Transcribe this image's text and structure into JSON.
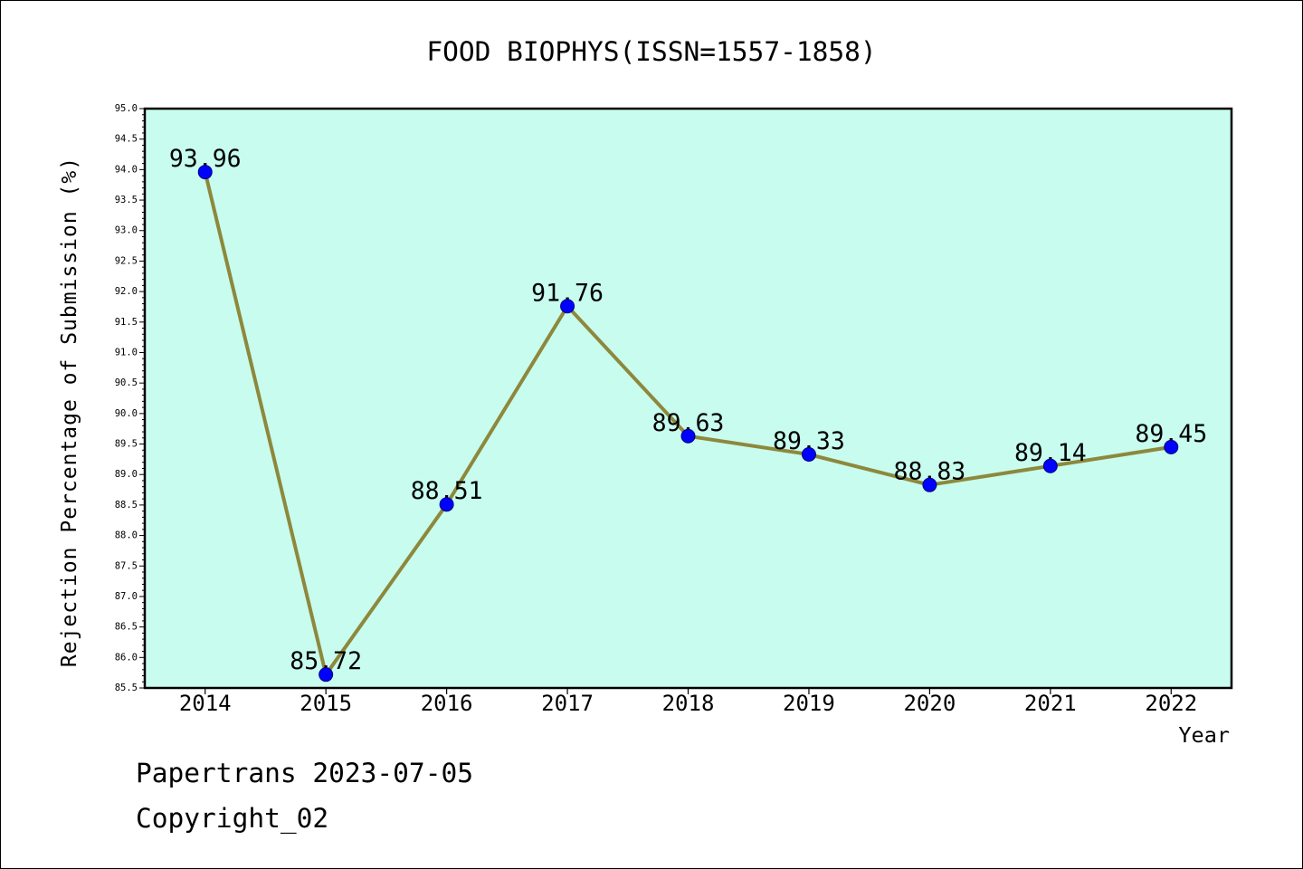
{
  "chart_data": {
    "type": "line",
    "title": "FOOD BIOPHYS(ISSN=1557-1858)",
    "xlabel": "Year",
    "ylabel": "Rejection Percentage of Submission (%)",
    "categories": [
      "2014",
      "2015",
      "2016",
      "2017",
      "2018",
      "2019",
      "2020",
      "2021",
      "2022"
    ],
    "series": [
      {
        "values": [
          93.96,
          85.72,
          88.51,
          91.76,
          89.63,
          89.33,
          88.83,
          89.14,
          89.45
        ]
      }
    ],
    "data_labels": [
      "93.96",
      "85.72",
      "88.51",
      "91.76",
      "89.63",
      "89.33",
      "88.83",
      "89.14",
      "89.45"
    ],
    "ylim": [
      85.5,
      95.0
    ],
    "yticks": [
      "85.5",
      "86.0",
      "86.5",
      "87.0",
      "87.5",
      "88.0",
      "88.5",
      "89.0",
      "89.5",
      "90.0",
      "90.5",
      "91.0",
      "91.5",
      "92.0",
      "92.5",
      "93.0",
      "93.5",
      "94.0",
      "94.5",
      "95.0"
    ],
    "grid": false,
    "legend": "none"
  },
  "footer": {
    "stamp": "Papertrans 2023-07-05",
    "copyright": "Copyright_02"
  },
  "colors": {
    "plot_background": "#c8fcee",
    "line": "#8d883c",
    "marker": "#0000ff",
    "marker_edge": "#000080",
    "axis": "#000000"
  }
}
